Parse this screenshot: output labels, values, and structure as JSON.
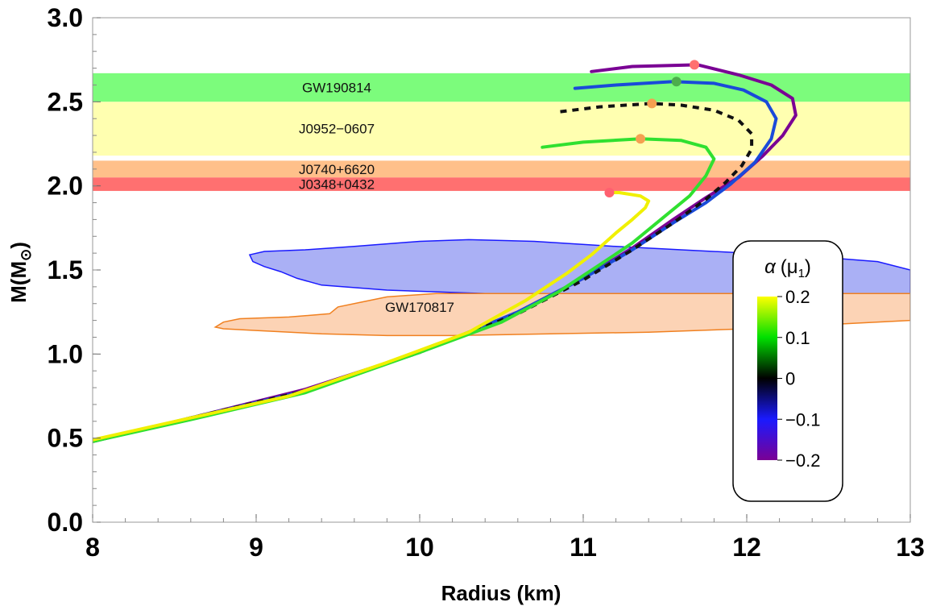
{
  "chart_data": {
    "type": "line",
    "xlabel": "Radius (km)",
    "ylabel": "M(M",
    "ylabel_symbol": "⊙",
    "ylabel_close": ")",
    "xlim": [
      8,
      13
    ],
    "ylim": [
      0,
      3.0
    ],
    "x_ticks": [
      "8",
      "9",
      "10",
      "11",
      "12",
      "13"
    ],
    "y_ticks": [
      "0.0",
      "0.5",
      "1.0",
      "1.5",
      "2.0",
      "2.5",
      "3.0"
    ],
    "grid": false,
    "bands": [
      {
        "label": "GW190814",
        "ymin": 2.5,
        "ymax": 2.67,
        "color": "#7cfc7c"
      },
      {
        "label": "J0952−0607",
        "ymin": 2.18,
        "ymax": 2.5,
        "color": "#ffffb0"
      },
      {
        "label": "J0740+6620",
        "ymin": 2.05,
        "ymax": 2.15,
        "color": "#ffc08a"
      },
      {
        "label": "J0348+0432",
        "ymin": 1.97,
        "ymax": 2.05,
        "color": "#ff7070"
      }
    ],
    "regions": [
      {
        "label": "",
        "fill": "#aab0f5",
        "stroke": "#1a1aff",
        "points": [
          [
            8.96,
            1.59
          ],
          [
            9.05,
            1.61
          ],
          [
            9.3,
            1.62
          ],
          [
            9.6,
            1.64
          ],
          [
            10.0,
            1.67
          ],
          [
            10.3,
            1.68
          ],
          [
            10.7,
            1.67
          ],
          [
            11.2,
            1.64
          ],
          [
            11.6,
            1.62
          ],
          [
            12.0,
            1.6
          ],
          [
            12.4,
            1.58
          ],
          [
            12.8,
            1.55
          ],
          [
            13.0,
            1.5
          ],
          [
            13.0,
            1.36
          ],
          [
            12.4,
            1.36
          ],
          [
            11.8,
            1.36
          ],
          [
            11.0,
            1.36
          ],
          [
            10.4,
            1.36
          ],
          [
            9.8,
            1.38
          ],
          [
            9.4,
            1.41
          ],
          [
            9.25,
            1.45
          ],
          [
            9.15,
            1.49
          ],
          [
            9.05,
            1.52
          ],
          [
            8.98,
            1.55
          ],
          [
            8.96,
            1.59
          ]
        ]
      },
      {
        "label": "GW170817",
        "fill": "#fcd3b5",
        "stroke": "#f08020",
        "points": [
          [
            8.75,
            1.16
          ],
          [
            8.8,
            1.19
          ],
          [
            8.9,
            1.21
          ],
          [
            9.2,
            1.22
          ],
          [
            9.45,
            1.24
          ],
          [
            9.5,
            1.28
          ],
          [
            9.65,
            1.31
          ],
          [
            9.8,
            1.34
          ],
          [
            10.1,
            1.36
          ],
          [
            10.6,
            1.36
          ],
          [
            11.4,
            1.36
          ],
          [
            12.2,
            1.36
          ],
          [
            13.0,
            1.36
          ],
          [
            13.0,
            1.2
          ],
          [
            12.6,
            1.18
          ],
          [
            12.0,
            1.15
          ],
          [
            11.4,
            1.13
          ],
          [
            10.8,
            1.12
          ],
          [
            10.2,
            1.11
          ],
          [
            9.8,
            1.11
          ],
          [
            9.4,
            1.12
          ],
          [
            9.0,
            1.14
          ],
          [
            8.8,
            1.15
          ],
          [
            8.75,
            1.16
          ]
        ]
      }
    ],
    "region_label": {
      "text": "GW170817",
      "x": 10.0,
      "y": 1.25
    },
    "series": [
      {
        "alpha": "-0.2",
        "color": "#7a0094",
        "dashed": false,
        "points": [
          [
            8.0,
            0.48
          ],
          [
            8.6,
            0.62
          ],
          [
            9.3,
            0.79
          ],
          [
            10.0,
            1.01
          ],
          [
            10.6,
            1.25
          ],
          [
            11.0,
            1.45
          ],
          [
            11.3,
            1.63
          ],
          [
            11.55,
            1.8
          ],
          [
            11.75,
            1.93
          ],
          [
            11.95,
            2.05
          ],
          [
            12.1,
            2.18
          ],
          [
            12.22,
            2.3
          ],
          [
            12.3,
            2.42
          ],
          [
            12.28,
            2.52
          ],
          [
            12.15,
            2.6
          ],
          [
            11.95,
            2.66
          ],
          [
            11.7,
            2.72
          ],
          [
            11.3,
            2.71
          ],
          [
            11.05,
            2.68
          ]
        ],
        "max_point": [
          11.68,
          2.72
        ],
        "max_color": "#ff7070"
      },
      {
        "alpha": "-0.1",
        "color": "#1a4ad9",
        "dashed": false,
        "points": [
          [
            8.0,
            0.48
          ],
          [
            8.6,
            0.62
          ],
          [
            9.3,
            0.78
          ],
          [
            10.0,
            1.01
          ],
          [
            10.6,
            1.25
          ],
          [
            11.0,
            1.45
          ],
          [
            11.3,
            1.62
          ],
          [
            11.55,
            1.78
          ],
          [
            11.75,
            1.9
          ],
          [
            11.9,
            2.01
          ],
          [
            12.05,
            2.14
          ],
          [
            12.15,
            2.28
          ],
          [
            12.18,
            2.4
          ],
          [
            12.12,
            2.5
          ],
          [
            11.98,
            2.57
          ],
          [
            11.8,
            2.61
          ],
          [
            11.55,
            2.62
          ],
          [
            11.2,
            2.6
          ],
          [
            10.95,
            2.58
          ]
        ],
        "max_point": [
          11.57,
          2.62
        ],
        "max_color": "#4cae4c"
      },
      {
        "alpha": "0",
        "color": "#111111",
        "dashed": true,
        "points": [
          [
            8.0,
            0.48
          ],
          [
            8.6,
            0.62
          ],
          [
            9.3,
            0.78
          ],
          [
            10.0,
            1.01
          ],
          [
            10.6,
            1.24
          ],
          [
            11.0,
            1.44
          ],
          [
            11.3,
            1.62
          ],
          [
            11.55,
            1.78
          ],
          [
            11.75,
            1.92
          ],
          [
            11.87,
            2.02
          ],
          [
            11.97,
            2.12
          ],
          [
            12.03,
            2.22
          ],
          [
            12.03,
            2.31
          ],
          [
            11.95,
            2.39
          ],
          [
            11.8,
            2.45
          ],
          [
            11.6,
            2.48
          ],
          [
            11.42,
            2.49
          ],
          [
            11.1,
            2.47
          ],
          [
            10.85,
            2.44
          ]
        ],
        "max_point": [
          11.42,
          2.49
        ],
        "max_color": "#f5a050"
      },
      {
        "alpha": "0.1",
        "color": "#30e030",
        "dashed": false,
        "points": [
          [
            8.0,
            0.48
          ],
          [
            8.6,
            0.61
          ],
          [
            9.3,
            0.77
          ],
          [
            10.0,
            1.01
          ],
          [
            10.5,
            1.19
          ],
          [
            10.85,
            1.37
          ],
          [
            11.1,
            1.53
          ],
          [
            11.3,
            1.66
          ],
          [
            11.5,
            1.82
          ],
          [
            11.65,
            1.94
          ],
          [
            11.75,
            2.06
          ],
          [
            11.8,
            2.16
          ],
          [
            11.75,
            2.23
          ],
          [
            11.6,
            2.27
          ],
          [
            11.35,
            2.28
          ],
          [
            11.0,
            2.26
          ],
          [
            10.75,
            2.23
          ]
        ],
        "max_point": [
          11.35,
          2.28
        ],
        "max_color": "#f5a050"
      },
      {
        "alpha": "0.2",
        "color": "#f0f000",
        "dashed": false,
        "points": [
          [
            8.0,
            0.49
          ],
          [
            8.6,
            0.62
          ],
          [
            9.2,
            0.75
          ],
          [
            9.8,
            0.95
          ],
          [
            10.3,
            1.13
          ],
          [
            10.65,
            1.32
          ],
          [
            10.9,
            1.48
          ],
          [
            11.05,
            1.59
          ],
          [
            11.2,
            1.72
          ],
          [
            11.3,
            1.8
          ],
          [
            11.38,
            1.87
          ],
          [
            11.4,
            1.91
          ],
          [
            11.35,
            1.94
          ],
          [
            11.22,
            1.96
          ],
          [
            11.15,
            1.96
          ]
        ],
        "max_point": [
          11.16,
          1.96
        ],
        "max_color": "#ff6070"
      }
    ],
    "colorbar": {
      "title": "α",
      "title_sub": "(μ",
      "title_index": "1",
      "title_close": ")",
      "min": -0.2,
      "max": 0.2,
      "ticks": [
        "0.2",
        "0.1",
        "0",
        "−0.1",
        "−0.2"
      ],
      "stops": [
        "#7a0094",
        "#1a1aff",
        "#000000",
        "#00e000",
        "#ffff00"
      ]
    }
  }
}
